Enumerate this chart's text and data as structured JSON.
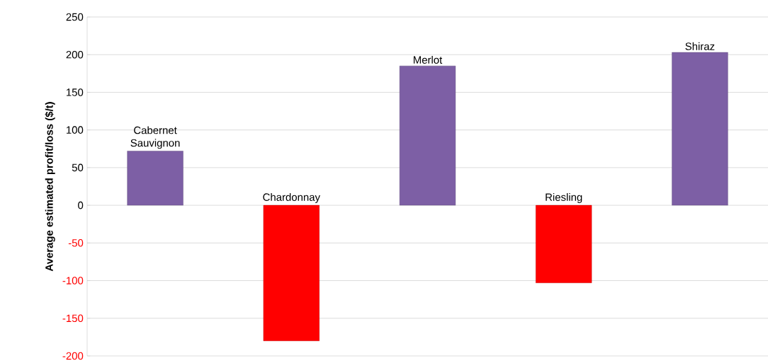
{
  "chart_data": {
    "type": "bar",
    "ylabel": "Average estimated profit/loss ($/t)",
    "categories": [
      "Cabernet Sauvignon",
      "Chardonnay",
      "Merlot",
      "Riesling",
      "Shiraz"
    ],
    "values": [
      72,
      -180,
      185,
      -103,
      203
    ],
    "colors": [
      "#7d5fa5",
      "#ff0000",
      "#7d5fa5",
      "#ff0000",
      "#7d5fa5"
    ],
    "ylim": [
      -200,
      250
    ],
    "yticks": [
      -200,
      -150,
      -100,
      -50,
      0,
      50,
      100,
      150,
      200,
      250
    ],
    "grid": "y",
    "tick_labels": "y"
  }
}
